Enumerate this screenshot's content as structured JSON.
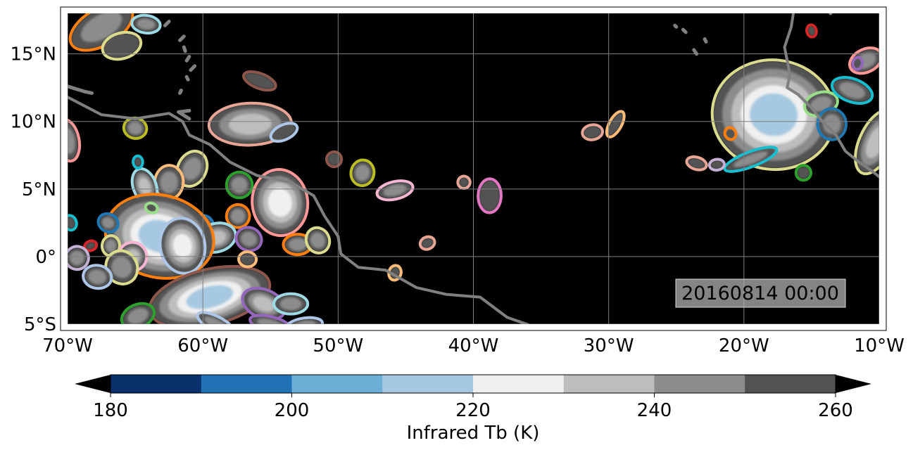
{
  "map": {
    "extent": {
      "lon_min": -70,
      "lon_max": -10,
      "lat_min": -5,
      "lat_max": 18
    },
    "background_color": "#000000",
    "coastline_color": "#808080",
    "gridline_color": "#808080",
    "lon_ticks": [
      {
        "value": -70,
        "label": "70°W"
      },
      {
        "value": -60,
        "label": "60°W"
      },
      {
        "value": -50,
        "label": "50°W"
      },
      {
        "value": -40,
        "label": "40°W"
      },
      {
        "value": -30,
        "label": "30°W"
      },
      {
        "value": -20,
        "label": "20°W"
      },
      {
        "value": -10,
        "label": "10°W"
      }
    ],
    "lat_ticks": [
      {
        "value": 15,
        "label": "15°N"
      },
      {
        "value": 10,
        "label": "10°N"
      },
      {
        "value": 5,
        "label": "5°N"
      },
      {
        "value": 0,
        "label": "0°"
      },
      {
        "value": -5,
        "label": "5°S"
      }
    ],
    "timestamp": "20160814 00:00"
  },
  "colorbar": {
    "label": "Infrared Tb (K)",
    "levels": [
      180,
      190,
      200,
      210,
      220,
      230,
      240,
      250,
      260
    ],
    "colors": [
      "#08306b",
      "#2171b5",
      "#6baed6",
      "#a6c8e0",
      "#f0f0f0",
      "#bdbdbd",
      "#8c8c8c",
      "#525252"
    ],
    "under_color": "#000000",
    "over_color": "#000000",
    "tick_labels": [
      {
        "value": 180,
        "label": "180"
      },
      {
        "value": 200,
        "label": "200"
      },
      {
        "value": 220,
        "label": "220"
      },
      {
        "value": 240,
        "label": "240"
      },
      {
        "value": 260,
        "label": "260"
      }
    ]
  },
  "systems": [
    {
      "lon": -67.5,
      "lat": 17.0,
      "rx": 2.5,
      "ry": 1.3,
      "outline": "#ff7f0e",
      "cold": 240
    },
    {
      "lon": -64.2,
      "lat": 17.2,
      "rx": 1.0,
      "ry": 0.6,
      "outline": "#9edae5",
      "cold": 240
    },
    {
      "lon": -66.0,
      "lat": 15.6,
      "rx": 1.4,
      "ry": 0.9,
      "outline": "#dbdb8d",
      "cold": 250
    },
    {
      "lon": -55.8,
      "lat": 13.0,
      "rx": 1.2,
      "ry": 0.5,
      "outline": "#8c564b",
      "cold": 250
    },
    {
      "lon": -56.5,
      "lat": 9.8,
      "rx": 3.0,
      "ry": 1.5,
      "outline": "#e6a595",
      "cold": 230
    },
    {
      "lon": -54.0,
      "lat": 9.2,
      "rx": 1.0,
      "ry": 0.5,
      "outline": "#aec7e8",
      "cold": 250
    },
    {
      "lon": -65.0,
      "lat": 9.5,
      "rx": 0.8,
      "ry": 0.7,
      "outline": "#bcbd22",
      "cold": 240
    },
    {
      "lon": -70.0,
      "lat": 8.6,
      "rx": 0.8,
      "ry": 1.5,
      "outline": "#ff9896",
      "cold": 240
    },
    {
      "lon": -60.8,
      "lat": 6.5,
      "rx": 1.0,
      "ry": 1.3,
      "outline": "#dbdb8d",
      "cold": 240
    },
    {
      "lon": -62.5,
      "lat": 5.5,
      "rx": 1.0,
      "ry": 1.2,
      "outline": "#ffbb78",
      "cold": 240
    },
    {
      "lon": -64.3,
      "lat": 5.2,
      "rx": 0.8,
      "ry": 1.3,
      "outline": "#9edae5",
      "cold": 230
    },
    {
      "lon": -57.3,
      "lat": 5.3,
      "rx": 0.9,
      "ry": 0.9,
      "outline": "#2ca02c",
      "cold": 240
    },
    {
      "lon": -54.3,
      "lat": 4.0,
      "rx": 2.0,
      "ry": 2.4,
      "outline": "#ff9896",
      "cold": 220
    },
    {
      "lon": -57.4,
      "lat": 3.0,
      "rx": 0.8,
      "ry": 0.8,
      "outline": "#ff7f0e",
      "cold": 240
    },
    {
      "lon": -60.0,
      "lat": 2.4,
      "rx": 0.7,
      "ry": 0.6,
      "outline": "#1f77b4",
      "cold": 240
    },
    {
      "lon": -59.0,
      "lat": 1.4,
      "rx": 1.4,
      "ry": 1.0,
      "outline": "#9edae5",
      "cold": 230
    },
    {
      "lon": -56.6,
      "lat": 1.3,
      "rx": 0.9,
      "ry": 0.8,
      "outline": "#9467bd",
      "cold": 240
    },
    {
      "lon": -53.0,
      "lat": 0.9,
      "rx": 1.0,
      "ry": 0.7,
      "outline": "#ff7f0e",
      "cold": 240
    },
    {
      "lon": -51.5,
      "lat": 1.2,
      "rx": 0.8,
      "ry": 0.9,
      "outline": "#dbdb8d",
      "cold": 240
    },
    {
      "lon": -63.2,
      "lat": 1.5,
      "rx": 4.0,
      "ry": 3.0,
      "outline": "#ff7f0e",
      "cold": 210
    },
    {
      "lon": -61.5,
      "lat": 0.8,
      "rx": 1.6,
      "ry": 2.0,
      "outline": "#aec7e8",
      "cold": 220
    },
    {
      "lon": -67.0,
      "lat": 2.5,
      "rx": 0.7,
      "ry": 0.6,
      "outline": "#1f77b4",
      "cold": 240
    },
    {
      "lon": -66.8,
      "lat": 0.8,
      "rx": 0.6,
      "ry": 0.7,
      "outline": "#dbdb8d",
      "cold": 240
    },
    {
      "lon": -68.3,
      "lat": 0.8,
      "rx": 0.4,
      "ry": 0.3,
      "outline": "#d62728",
      "cold": 250
    },
    {
      "lon": -69.3,
      "lat": -0.1,
      "rx": 0.8,
      "ry": 0.8,
      "outline": "#c5b0d5",
      "cold": 240
    },
    {
      "lon": -65.2,
      "lat": 0.0,
      "rx": 1.0,
      "ry": 1.0,
      "outline": "#f7b6d2",
      "cold": 230
    },
    {
      "lon": -66.0,
      "lat": -0.8,
      "rx": 1.1,
      "ry": 1.2,
      "outline": "#dbdb8d",
      "cold": 240
    },
    {
      "lon": -67.8,
      "lat": -1.5,
      "rx": 1.0,
      "ry": 0.8,
      "outline": "#aec7e8",
      "cold": 240
    },
    {
      "lon": -59.5,
      "lat": -3.0,
      "rx": 4.5,
      "ry": 2.0,
      "outline": "#8c564b",
      "cold": 210
    },
    {
      "lon": -55.5,
      "lat": -3.5,
      "rx": 1.6,
      "ry": 1.0,
      "outline": "#9467bd",
      "cold": 230
    },
    {
      "lon": -53.5,
      "lat": -3.5,
      "rx": 1.2,
      "ry": 0.7,
      "outline": "#9edae5",
      "cold": 240
    },
    {
      "lon": -64.8,
      "lat": -4.4,
      "rx": 1.2,
      "ry": 0.8,
      "outline": "#2ca02c",
      "cold": 240
    },
    {
      "lon": -55.0,
      "lat": -5.0,
      "rx": 1.5,
      "ry": 0.5,
      "outline": "#9467bd",
      "cold": 240
    },
    {
      "lon": -52.5,
      "lat": -5.1,
      "rx": 1.3,
      "ry": 0.5,
      "outline": "#aec7e8",
      "cold": 240
    },
    {
      "lon": -59.0,
      "lat": -5.0,
      "rx": 1.5,
      "ry": 0.5,
      "outline": "#aec7e8",
      "cold": 240
    },
    {
      "lon": -56.7,
      "lat": -0.2,
      "rx": 0.6,
      "ry": 0.5,
      "outline": "#ffbb78",
      "cold": 250
    },
    {
      "lon": -69.8,
      "lat": 2.5,
      "rx": 0.4,
      "ry": 0.5,
      "outline": "#17becf",
      "cold": 250
    },
    {
      "lon": -63.8,
      "lat": 3.6,
      "rx": 0.4,
      "ry": 0.3,
      "outline": "#98df8a",
      "cold": 250
    },
    {
      "lon": -64.8,
      "lat": 7.0,
      "rx": 0.3,
      "ry": 0.4,
      "outline": "#17becf",
      "cold": 250
    },
    {
      "lon": -50.3,
      "lat": 7.2,
      "rx": 0.5,
      "ry": 0.5,
      "outline": "#8c564b",
      "cold": 250
    },
    {
      "lon": -48.2,
      "lat": 6.2,
      "rx": 0.8,
      "ry": 0.9,
      "outline": "#bcbd22",
      "cold": 240
    },
    {
      "lon": -45.8,
      "lat": 4.9,
      "rx": 1.3,
      "ry": 0.6,
      "outline": "#f7b6d2",
      "cold": 240
    },
    {
      "lon": -40.7,
      "lat": 5.5,
      "rx": 0.4,
      "ry": 0.4,
      "outline": "#e6a595",
      "cold": 250
    },
    {
      "lon": -38.8,
      "lat": 4.5,
      "rx": 0.8,
      "ry": 1.2,
      "outline": "#e377c2",
      "cold": 250
    },
    {
      "lon": -43.4,
      "lat": 1.0,
      "rx": 0.5,
      "ry": 0.4,
      "outline": "#e6a595",
      "cold": 250
    },
    {
      "lon": -45.8,
      "lat": -1.2,
      "rx": 0.4,
      "ry": 0.5,
      "outline": "#ffbb78",
      "cold": 250
    },
    {
      "lon": -31.2,
      "lat": 9.2,
      "rx": 0.7,
      "ry": 0.5,
      "outline": "#e6a595",
      "cold": 250
    },
    {
      "lon": -29.5,
      "lat": 9.8,
      "rx": 0.4,
      "ry": 1.0,
      "outline": "#ffbb78",
      "cold": 250
    },
    {
      "lon": -17.8,
      "lat": 10.5,
      "rx": 4.5,
      "ry": 4.0,
      "outline": "#dbdb8d",
      "cold": 210
    },
    {
      "lon": -14.3,
      "lat": 11.3,
      "rx": 1.2,
      "ry": 0.8,
      "outline": "#98df8a",
      "cold": 240
    },
    {
      "lon": -12.0,
      "lat": 12.3,
      "rx": 1.5,
      "ry": 0.8,
      "outline": "#17becf",
      "cold": 240
    },
    {
      "lon": -13.5,
      "lat": 9.8,
      "rx": 1.0,
      "ry": 1.1,
      "outline": "#1f77b4",
      "cold": 240
    },
    {
      "lon": -11.0,
      "lat": 14.5,
      "rx": 1.2,
      "ry": 0.8,
      "outline": "#ff9896",
      "cold": 240
    },
    {
      "lon": -11.6,
      "lat": 14.3,
      "rx": 0.3,
      "ry": 0.4,
      "outline": "#9467bd",
      "cold": 250
    },
    {
      "lon": -15.0,
      "lat": 16.7,
      "rx": 0.3,
      "ry": 0.4,
      "outline": "#d62728",
      "cold": 250
    },
    {
      "lon": -10.2,
      "lat": 8.5,
      "rx": 1.2,
      "ry": 2.5,
      "outline": "#dbdb8d",
      "cold": 230
    },
    {
      "lon": -15.6,
      "lat": 6.2,
      "rx": 0.5,
      "ry": 0.5,
      "outline": "#2ca02c",
      "cold": 250
    },
    {
      "lon": -19.5,
      "lat": 7.2,
      "rx": 2.0,
      "ry": 0.5,
      "outline": "#17becf",
      "cold": 240
    },
    {
      "lon": -23.5,
      "lat": 6.9,
      "rx": 0.7,
      "ry": 0.4,
      "outline": "#e6a595",
      "cold": 250
    },
    {
      "lon": -22.0,
      "lat": 6.8,
      "rx": 0.5,
      "ry": 0.35,
      "outline": "#c5b0d5",
      "cold": 250
    },
    {
      "lon": -21.0,
      "lat": 9.1,
      "rx": 0.35,
      "ry": 0.4,
      "outline": "#ff7f0e",
      "cold": 250
    }
  ],
  "coastlines": [
    [
      [
        -70.0,
        11.8
      ],
      [
        -67.5,
        10.5
      ],
      [
        -65.0,
        10.2
      ],
      [
        -62.5,
        10.6
      ],
      [
        -61.5,
        10.0
      ],
      [
        -61.0,
        9.0
      ],
      [
        -59.5,
        8.3
      ],
      [
        -58.0,
        7.0
      ],
      [
        -56.0,
        6.0
      ],
      [
        -53.5,
        5.5
      ],
      [
        -51.8,
        4.5
      ],
      [
        -51.0,
        3.0
      ],
      [
        -50.0,
        1.5
      ],
      [
        -49.8,
        0.2
      ],
      [
        -48.5,
        -0.8
      ],
      [
        -46.5,
        -1.0
      ],
      [
        -44.2,
        -2.3
      ],
      [
        -42.0,
        -2.8
      ],
      [
        -39.5,
        -3.0
      ],
      [
        -37.5,
        -4.5
      ],
      [
        -35.5,
        -5.2
      ]
    ],
    [
      [
        -70.0,
        12.6
      ],
      [
        -68.7,
        12.2
      ],
      [
        -68.2,
        12.1
      ]
    ],
    [
      [
        -61.0,
        10.2
      ],
      [
        -61.8,
        10.7
      ],
      [
        -61.0,
        10.8
      ]
    ],
    [
      [
        -60.6,
        14.1
      ],
      [
        -60.9,
        13.8
      ]
    ],
    [
      [
        -61.2,
        13.3
      ],
      [
        -61.1,
        13.1
      ]
    ],
    [
      [
        -61.7,
        12.1
      ],
      [
        -61.6,
        12.3
      ]
    ],
    [
      [
        -61.0,
        14.8
      ],
      [
        -61.2,
        14.5
      ]
    ],
    [
      [
        -61.4,
        15.5
      ],
      [
        -61.3,
        15.2
      ]
    ],
    [
      [
        -61.7,
        16.0
      ],
      [
        -61.4,
        16.3
      ]
    ],
    [
      [
        -62.5,
        17.4
      ],
      [
        -62.8,
        17.1
      ]
    ],
    [
      [
        -17.0,
        21.0
      ],
      [
        -16.2,
        19.0
      ],
      [
        -16.5,
        17.0
      ],
      [
        -17.0,
        15.5
      ],
      [
        -16.8,
        14.5
      ],
      [
        -16.6,
        13.5
      ],
      [
        -16.8,
        12.5
      ],
      [
        -16.0,
        12.0
      ],
      [
        -15.0,
        11.0
      ],
      [
        -14.2,
        10.0
      ],
      [
        -13.2,
        9.0
      ],
      [
        -12.5,
        7.8
      ],
      [
        -11.5,
        7.0
      ],
      [
        -10.5,
        6.3
      ],
      [
        -10.0,
        5.9
      ]
    ],
    [
      [
        -13.6,
        18.0
      ],
      [
        -13.8,
        20.5
      ]
    ],
    [
      [
        -23.7,
        15.3
      ],
      [
        -23.5,
        15.0
      ]
    ],
    [
      [
        -24.5,
        16.8
      ],
      [
        -24.3,
        16.6
      ]
    ],
    [
      [
        -22.9,
        16.1
      ],
      [
        -22.8,
        15.9
      ]
    ],
    [
      [
        -25.1,
        17.1
      ],
      [
        -25.0,
        17.0
      ]
    ]
  ]
}
